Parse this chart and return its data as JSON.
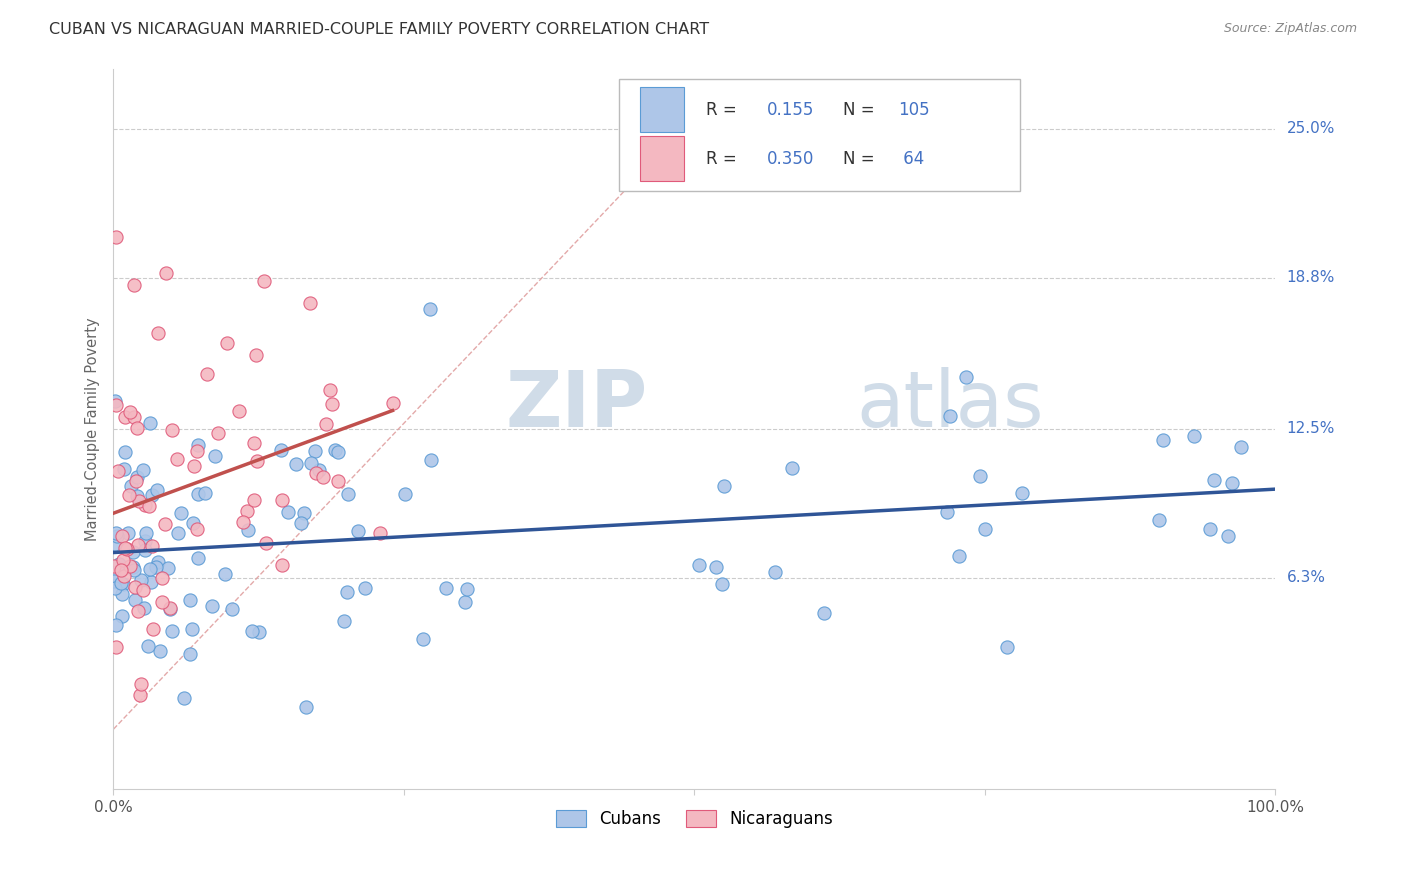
{
  "title": "CUBAN VS NICARAGUAN MARRIED-COUPLE FAMILY POVERTY CORRELATION CHART",
  "source": "Source: ZipAtlas.com",
  "ylabel": "Married-Couple Family Poverty",
  "ytick_labels": [
    "6.3%",
    "12.5%",
    "18.8%",
    "25.0%"
  ],
  "ytick_values": [
    6.3,
    12.5,
    18.8,
    25.0
  ],
  "xmin": 0.0,
  "xmax": 100.0,
  "ymin": -2.5,
  "ymax": 27.5,
  "cubans_color": "#aec6e8",
  "cubans_edge": "#5b9bd5",
  "nicaraguans_color": "#f4b8c1",
  "nicaraguans_edge": "#e05a7a",
  "trend_cuban_color": "#2f5597",
  "trend_nicaraguan_color": "#c0504d",
  "diagonal_color": "#e0a0a0",
  "watermark_zip_color": "#d0dce8",
  "watermark_atlas_color": "#d0dce8",
  "legend_text_color": "#333333",
  "legend_num_color": "#4472c4",
  "right_axis_color": "#4472c4",
  "grid_color": "#cccccc",
  "cuban_R": "0.155",
  "cuban_N": "105",
  "nica_R": "0.350",
  "nica_N": "64",
  "seed_cubans": 12,
  "seed_nicas": 7
}
